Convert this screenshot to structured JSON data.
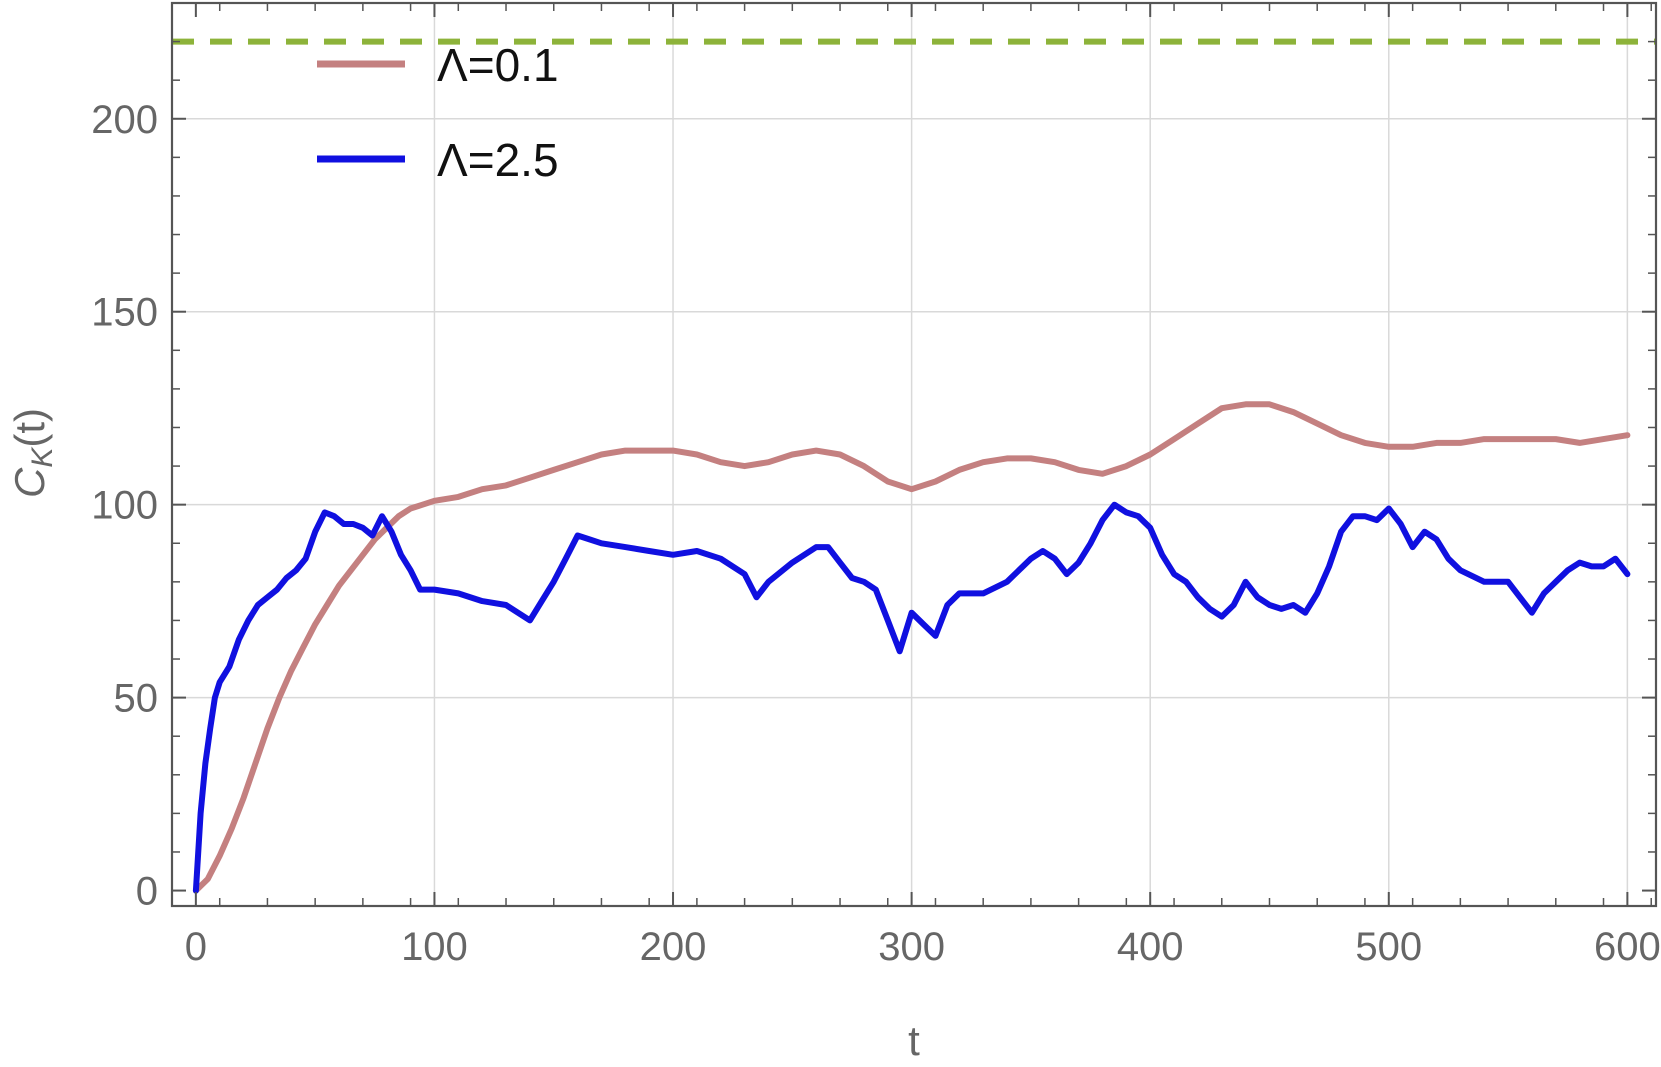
{
  "chart_data": {
    "type": "line",
    "xlabel": "t",
    "ylabel": "C",
    "ylabel_sub": "K",
    "ylabel_arg": "(t)",
    "xlim": [
      -10,
      612
    ],
    "ylim": [
      -4,
      230
    ],
    "x_ticks": [
      0,
      100,
      200,
      300,
      400,
      500,
      600
    ],
    "x_tick_labels": [
      "0",
      "100",
      "200",
      "300",
      "400",
      "500",
      "600"
    ],
    "y_ticks": [
      0,
      50,
      100,
      150,
      200
    ],
    "y_tick_labels": [
      "0",
      "50",
      "100",
      "150",
      "200"
    ],
    "grid": true,
    "legend_position": "top-left",
    "reference_line": {
      "y": 220,
      "color": "#8db33a",
      "style": "dashed"
    },
    "series": [
      {
        "name": "Λ=0.1",
        "color": "#c48080",
        "points": [
          [
            0,
            0
          ],
          [
            5,
            3
          ],
          [
            10,
            9
          ],
          [
            15,
            16
          ],
          [
            20,
            24
          ],
          [
            25,
            33
          ],
          [
            30,
            42
          ],
          [
            35,
            50
          ],
          [
            40,
            57
          ],
          [
            45,
            63
          ],
          [
            50,
            69
          ],
          [
            55,
            74
          ],
          [
            60,
            79
          ],
          [
            65,
            83
          ],
          [
            70,
            87
          ],
          [
            75,
            91
          ],
          [
            80,
            94
          ],
          [
            85,
            97
          ],
          [
            90,
            99
          ],
          [
            95,
            100
          ],
          [
            100,
            101
          ],
          [
            110,
            102
          ],
          [
            120,
            104
          ],
          [
            130,
            105
          ],
          [
            140,
            107
          ],
          [
            150,
            109
          ],
          [
            160,
            111
          ],
          [
            170,
            113
          ],
          [
            180,
            114
          ],
          [
            190,
            114
          ],
          [
            200,
            114
          ],
          [
            210,
            113
          ],
          [
            220,
            111
          ],
          [
            230,
            110
          ],
          [
            240,
            111
          ],
          [
            250,
            113
          ],
          [
            260,
            114
          ],
          [
            270,
            113
          ],
          [
            280,
            110
          ],
          [
            290,
            106
          ],
          [
            300,
            104
          ],
          [
            310,
            106
          ],
          [
            320,
            109
          ],
          [
            330,
            111
          ],
          [
            340,
            112
          ],
          [
            350,
            112
          ],
          [
            360,
            111
          ],
          [
            370,
            109
          ],
          [
            380,
            108
          ],
          [
            390,
            110
          ],
          [
            400,
            113
          ],
          [
            410,
            117
          ],
          [
            420,
            121
          ],
          [
            430,
            125
          ],
          [
            440,
            126
          ],
          [
            450,
            126
          ],
          [
            460,
            124
          ],
          [
            470,
            121
          ],
          [
            480,
            118
          ],
          [
            490,
            116
          ],
          [
            500,
            115
          ],
          [
            510,
            115
          ],
          [
            520,
            116
          ],
          [
            530,
            116
          ],
          [
            540,
            117
          ],
          [
            550,
            117
          ],
          [
            560,
            117
          ],
          [
            570,
            117
          ],
          [
            580,
            116
          ],
          [
            590,
            117
          ],
          [
            600,
            118
          ]
        ]
      },
      {
        "name": "Λ=2.5",
        "color": "#1010e0",
        "points": [
          [
            0,
            0
          ],
          [
            2,
            20
          ],
          [
            4,
            33
          ],
          [
            6,
            42
          ],
          [
            8,
            50
          ],
          [
            10,
            54
          ],
          [
            14,
            58
          ],
          [
            18,
            65
          ],
          [
            22,
            70
          ],
          [
            26,
            74
          ],
          [
            30,
            76
          ],
          [
            34,
            78
          ],
          [
            38,
            81
          ],
          [
            42,
            83
          ],
          [
            46,
            86
          ],
          [
            50,
            93
          ],
          [
            54,
            98
          ],
          [
            58,
            97
          ],
          [
            62,
            95
          ],
          [
            66,
            95
          ],
          [
            70,
            94
          ],
          [
            74,
            92
          ],
          [
            78,
            97
          ],
          [
            82,
            93
          ],
          [
            86,
            87
          ],
          [
            90,
            83
          ],
          [
            94,
            78
          ],
          [
            100,
            78
          ],
          [
            110,
            77
          ],
          [
            120,
            75
          ],
          [
            130,
            74
          ],
          [
            140,
            70
          ],
          [
            145,
            75
          ],
          [
            150,
            80
          ],
          [
            155,
            86
          ],
          [
            160,
            92
          ],
          [
            165,
            91
          ],
          [
            170,
            90
          ],
          [
            180,
            89
          ],
          [
            190,
            88
          ],
          [
            200,
            87
          ],
          [
            210,
            88
          ],
          [
            220,
            86
          ],
          [
            230,
            82
          ],
          [
            235,
            76
          ],
          [
            240,
            80
          ],
          [
            250,
            85
          ],
          [
            260,
            89
          ],
          [
            265,
            89
          ],
          [
            270,
            85
          ],
          [
            275,
            81
          ],
          [
            280,
            80
          ],
          [
            285,
            78
          ],
          [
            290,
            70
          ],
          [
            295,
            62
          ],
          [
            300,
            72
          ],
          [
            305,
            69
          ],
          [
            310,
            66
          ],
          [
            315,
            74
          ],
          [
            320,
            77
          ],
          [
            330,
            77
          ],
          [
            340,
            80
          ],
          [
            350,
            86
          ],
          [
            355,
            88
          ],
          [
            360,
            86
          ],
          [
            365,
            82
          ],
          [
            370,
            85
          ],
          [
            375,
            90
          ],
          [
            380,
            96
          ],
          [
            385,
            100
          ],
          [
            390,
            98
          ],
          [
            395,
            97
          ],
          [
            400,
            94
          ],
          [
            405,
            87
          ],
          [
            410,
            82
          ],
          [
            415,
            80
          ],
          [
            420,
            76
          ],
          [
            425,
            73
          ],
          [
            430,
            71
          ],
          [
            435,
            74
          ],
          [
            440,
            80
          ],
          [
            445,
            76
          ],
          [
            450,
            74
          ],
          [
            455,
            73
          ],
          [
            460,
            74
          ],
          [
            465,
            72
          ],
          [
            470,
            77
          ],
          [
            475,
            84
          ],
          [
            480,
            93
          ],
          [
            485,
            97
          ],
          [
            490,
            97
          ],
          [
            495,
            96
          ],
          [
            500,
            99
          ],
          [
            505,
            95
          ],
          [
            510,
            89
          ],
          [
            515,
            93
          ],
          [
            520,
            91
          ],
          [
            525,
            86
          ],
          [
            530,
            83
          ],
          [
            540,
            80
          ],
          [
            550,
            80
          ],
          [
            555,
            76
          ],
          [
            560,
            72
          ],
          [
            565,
            77
          ],
          [
            570,
            80
          ],
          [
            575,
            83
          ],
          [
            580,
            85
          ],
          [
            585,
            84
          ],
          [
            590,
            84
          ],
          [
            595,
            86
          ],
          [
            600,
            82
          ]
        ]
      }
    ]
  }
}
